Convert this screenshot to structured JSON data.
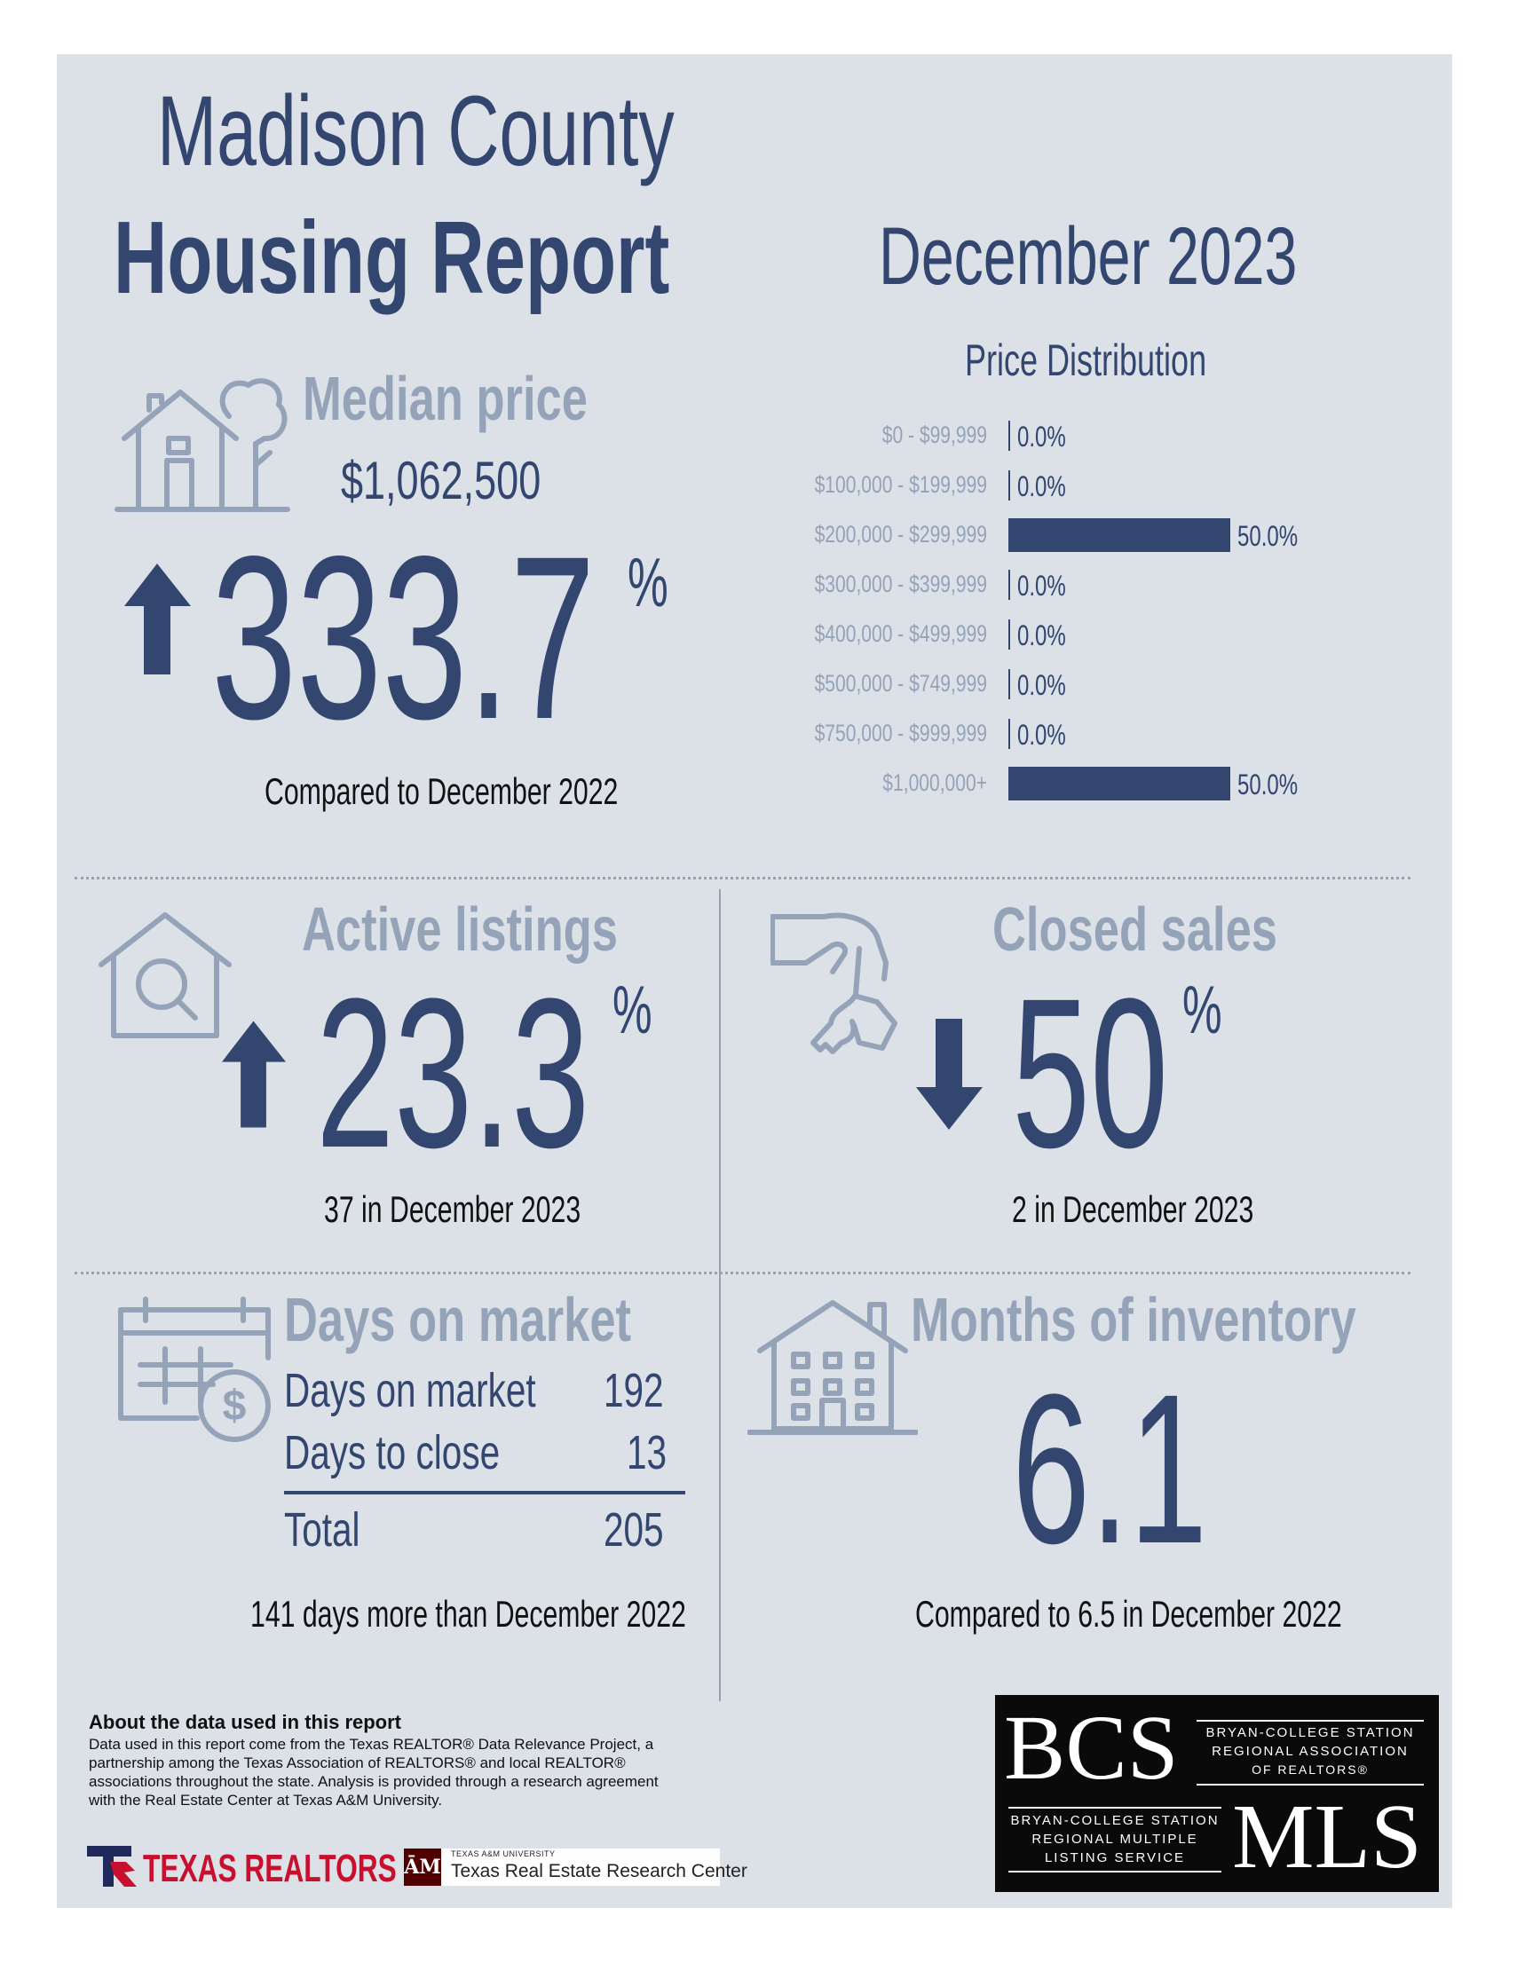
{
  "header": {
    "title_line1": "Madison County",
    "title_line2": "Housing Report",
    "period": "December 2023"
  },
  "median_price": {
    "label": "Median price",
    "value": "$1,062,500",
    "change": "333.7",
    "unit": "%",
    "direction": "up",
    "comparison": "Compared to December 2022"
  },
  "price_distribution": {
    "title": "Price Distribution",
    "rows": [
      {
        "range": "$0 - $99,999",
        "pct": "0.0%",
        "value": 0
      },
      {
        "range": "$100,000 - $199,999",
        "pct": "0.0%",
        "value": 0
      },
      {
        "range": "$200,000 - $299,999",
        "pct": "50.0%",
        "value": 50
      },
      {
        "range": "$300,000 - $399,999",
        "pct": "0.0%",
        "value": 0
      },
      {
        "range": "$400,000 - $499,999",
        "pct": "0.0%",
        "value": 0
      },
      {
        "range": "$500,000 - $749,999",
        "pct": "0.0%",
        "value": 0
      },
      {
        "range": "$750,000 - $999,999",
        "pct": "0.0%",
        "value": 0
      },
      {
        "range": "$1,000,000+",
        "pct": "50.0%",
        "value": 50
      }
    ]
  },
  "active_listings": {
    "label": "Active listings",
    "change": "23.3",
    "unit": "%",
    "direction": "up",
    "detail": "37 in December 2023"
  },
  "closed_sales": {
    "label": "Closed sales",
    "change": "50",
    "unit": "%",
    "direction": "down",
    "detail": "2 in December 2023"
  },
  "days_on_market": {
    "label": "Days on market",
    "rows": [
      {
        "name": "Days on market",
        "value": "192"
      },
      {
        "name": "Days to close",
        "value": "13"
      }
    ],
    "total_label": "Total",
    "total_value": "205",
    "detail": "141 days more than December 2022"
  },
  "months_inventory": {
    "label": "Months of inventory",
    "value": "6.1",
    "detail": "Compared to 6.5 in December 2022"
  },
  "footer": {
    "about_title": "About the data used in this report",
    "about_lines": [
      "Data used in this report come from the Texas REALTOR® Data Relevance Project, a",
      "partnership among the Texas Association of REALTORS® and local REALTOR®",
      "associations throughout the state. Analysis is provided through a research agreement",
      "with the Real Estate Center at Texas A&M University."
    ],
    "texas_realtors": "TEXAS REALTORS",
    "tamu_small": "TEXAS A&M UNIVERSITY",
    "tamu_center": "Texas Real Estate Research Center",
    "bcs_letters": "BCS",
    "bcs_line1": "BRYAN-COLLEGE STATION",
    "bcs_line2": "REGIONAL ASSOCIATION",
    "bcs_line3": "OF REALTORS®",
    "mls_line1": "BRYAN-COLLEGE STATION",
    "mls_line2": "REGIONAL MULTIPLE",
    "mls_line3": "LISTING SERVICE",
    "mls_letters": "MLS"
  },
  "colors": {
    "navy": "#334670",
    "muted": "#94a3b8",
    "panel": "#dce0e7"
  }
}
